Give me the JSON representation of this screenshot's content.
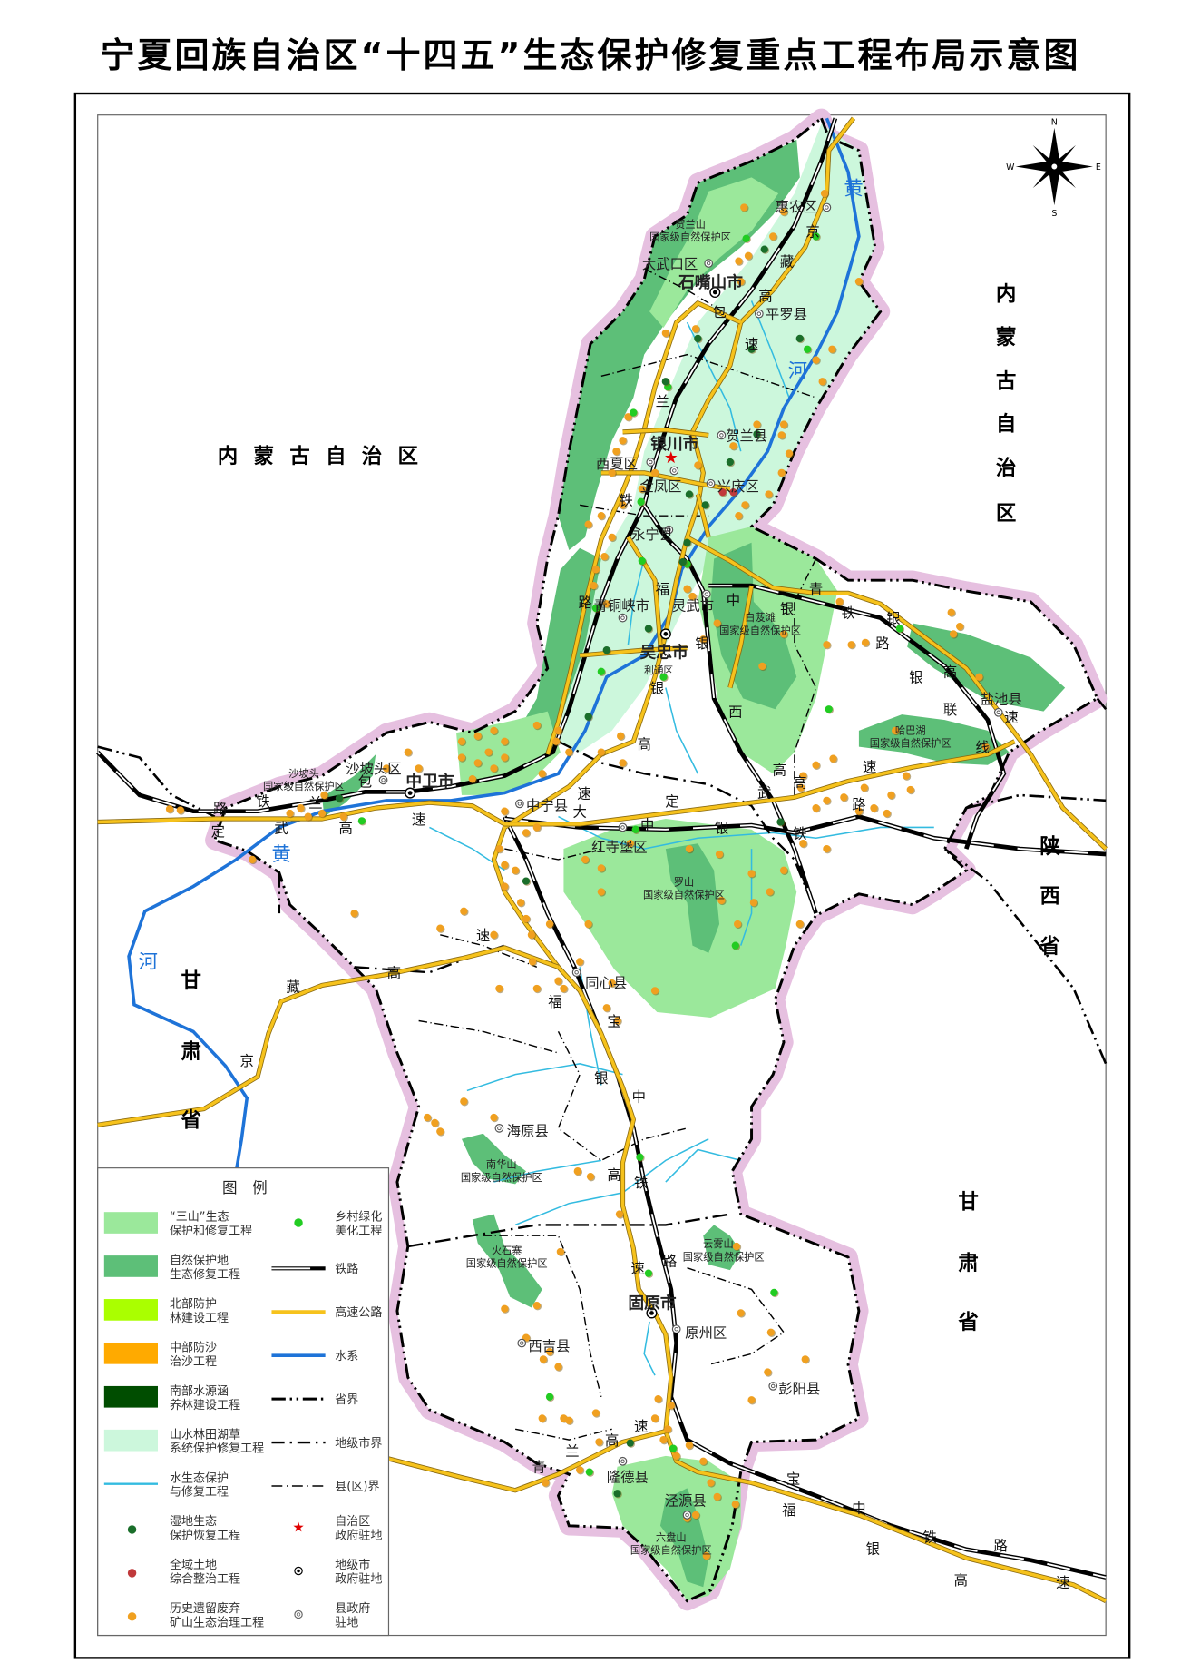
{
  "title": "宁夏回族自治区“十四五”生态保护修复重点工程布局示意图",
  "colors": {
    "three_mountains": "#9be89b",
    "nature_reserve": "#5dbf78",
    "northern_shelterbelt": "#aaff00",
    "central_sand_control": "#ffaa00",
    "southern_water_conservation": "#004d00",
    "landscape_system": "#ccf7dc",
    "water_ecology": "#33bbe0",
    "province_band": "#e6c0e0",
    "highway": "#f6c21c",
    "river": "#1e73d8",
    "rural_greening_dot": "#22cc22",
    "wetland_dot": "#1a6e2a",
    "land_consolidation_dot": "#c0393b",
    "mine_restoration_dot": "#f0a020",
    "capital_star": "#e00000"
  },
  "compass": {
    "n": "N",
    "e": "E",
    "s": "S",
    "w": "W"
  },
  "map": {
    "regions": {
      "inner_mongolia_west": "内 蒙 古 自 治 区",
      "inner_mongolia_east": [
        "内",
        "蒙",
        "古",
        "自",
        "治",
        "区"
      ],
      "shaanxi": [
        "陕",
        "西",
        "省"
      ],
      "gansu_west": [
        "甘",
        "肃",
        "省"
      ],
      "gansu_east": [
        "甘",
        "肃",
        "省"
      ]
    },
    "river_labels": [
      "黄",
      "河",
      "黄",
      "河"
    ],
    "places": [
      "惠农区",
      "大武口区",
      "石嘴山市",
      "平罗县",
      "银川市",
      "贺兰县",
      "西夏区",
      "金凤区",
      "兴庆区",
      "永宁县",
      "青铜峡市",
      "灵武市",
      "吴忠市",
      "利通区",
      "盐池县",
      "沙坡头区",
      "中卫市",
      "中宁县",
      "红寺堡区",
      "同心县",
      "海原县",
      "固原市",
      "原州区",
      "西吉县",
      "彭阳县",
      "隆德县",
      "泾源县"
    ],
    "reserves": [
      {
        "name": "贺兰山",
        "type": "国家级自然保护区"
      },
      {
        "name": "白芨滩",
        "type": "国家级自然保护区"
      },
      {
        "name": "哈巴湖",
        "type": "国家级自然保护区"
      },
      {
        "name": "沙坡头",
        "type": "国家级自然保护区"
      },
      {
        "name": "罗山",
        "type": "国家级自然保护区"
      },
      {
        "name": "南华山",
        "type": "国家级自然保护区"
      },
      {
        "name": "火石寨",
        "type": "国家级自然保护区"
      },
      {
        "name": "云雾山",
        "type": "国家级自然保护区"
      },
      {
        "name": "六盘山",
        "type": "国家级自然保护区"
      }
    ],
    "road_labels": [
      "京",
      "藏",
      "高",
      "包",
      "速",
      "兰",
      "铁",
      "路",
      "福",
      "中",
      "银",
      "银",
      "银",
      "青",
      "铁",
      "银",
      "路",
      "高",
      "银",
      "联",
      "线",
      "速",
      "西",
      "高",
      "高",
      "高",
      "速",
      "武",
      "定",
      "路",
      "铁",
      "银",
      "中",
      "速",
      "大",
      "铁",
      "路",
      "兰",
      "包",
      "定",
      "武",
      "高",
      "速",
      "速",
      "高",
      "藏",
      "京",
      "福",
      "宝",
      "银",
      "中",
      "高",
      "铁",
      "速",
      "路",
      "高",
      "速",
      "兰",
      "青",
      "宝",
      "福",
      "中",
      "铁",
      "路",
      "银",
      "高",
      "速"
    ]
  },
  "legend": {
    "title": "图　例",
    "left": [
      {
        "line1": "“三山”生态",
        "line2": "保护和修复工程",
        "symbol": "fill-light-green"
      },
      {
        "line1": "自然保护地",
        "line2": "生态修复工程",
        "symbol": "fill-green"
      },
      {
        "line1": "北部防护",
        "line2": "林建设工程",
        "symbol": "fill-lime"
      },
      {
        "line1": "中部防沙",
        "line2": "治沙工程",
        "symbol": "fill-orange"
      },
      {
        "line1": "南部水源涵",
        "line2": "养林建设工程",
        "symbol": "fill-dark-green"
      },
      {
        "line1": "山水林田湖草",
        "line2": "系统保护修复工程",
        "symbol": "fill-mint"
      },
      {
        "line1": "水生态保护",
        "line2": "与修复工程",
        "symbol": "line-cyan"
      },
      {
        "line1": "湿地生态",
        "line2": "保护恢复工程",
        "symbol": "dot-dark-green"
      },
      {
        "line1": "全域土地",
        "line2": "综合整治工程",
        "symbol": "dot-red"
      },
      {
        "line1": "历史遗留废弃",
        "line2": "矿山生态治理工程",
        "symbol": "dot-orange"
      }
    ],
    "right": [
      {
        "line1": "乡村绿化",
        "line2": "美化工程",
        "symbol": "dot-green"
      },
      {
        "line1": "铁路",
        "line2": "",
        "symbol": "railway"
      },
      {
        "line1": "高速公路",
        "line2": "",
        "symbol": "highway"
      },
      {
        "line1": "水系",
        "line2": "",
        "symbol": "river"
      },
      {
        "line1": "省界",
        "line2": "",
        "symbol": "province-boundary"
      },
      {
        "line1": "地级市界",
        "line2": "",
        "symbol": "prefecture-boundary"
      },
      {
        "line1": "县(区)界",
        "line2": "",
        "symbol": "county-boundary"
      },
      {
        "line1": "自治区",
        "line2": "政府驻地",
        "symbol": "star"
      },
      {
        "line1": "地级市",
        "line2": "政府驻地",
        "symbol": "city-seat"
      },
      {
        "line1": "县政府",
        "line2": "驻地",
        "symbol": "county-seat"
      }
    ]
  }
}
